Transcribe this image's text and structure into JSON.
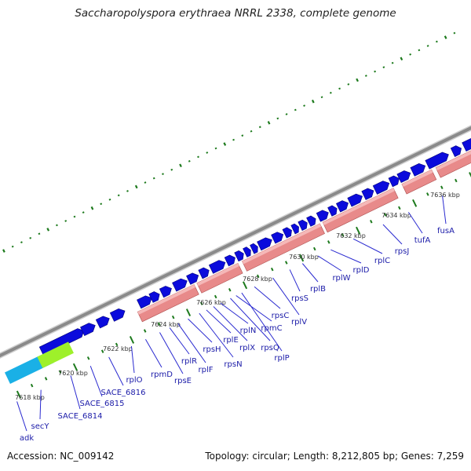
{
  "title": "Saccharopolyspora erythraea NRRL 2338, complete genome",
  "footer": {
    "accession": "Accession: NC_009142",
    "summary": "Topology: circular; Length: 8,212,805 bp; Genes: 7,259"
  },
  "colors": {
    "backbone": "#8a8a8a",
    "cds_forward": "#0b0bdc",
    "cds_reverse": "#0b0bdc",
    "rna_track": "#e88a8a",
    "tick": "#1d7a1d",
    "gene_label": "#1a1aa8",
    "highlight_green": "#9ef02a",
    "highlight_cyan": "#1ab0e6"
  },
  "scale": {
    "unit": "kbp",
    "positions": [
      "7618 kbp",
      "7620 kbp",
      "7622 kbp",
      "7624 kbp",
      "7626 kbp",
      "7628 kbp",
      "7630 kbp",
      "7632 kbp",
      "7634 kbp",
      "7636 kbp"
    ]
  },
  "genes": [
    "adk",
    "secY",
    "SACE_6814",
    "SACE_6815",
    "SACE_6816",
    "rplO",
    "rpmD",
    "rpsE",
    "rplR",
    "rplF",
    "rpsH",
    "rpsN",
    "rplE",
    "rplX",
    "rplN",
    "rpsQ",
    "rpmC",
    "rplP",
    "rpsC",
    "rplV",
    "rpsS",
    "rplB",
    "rplW",
    "rplD",
    "rplC",
    "rpsJ",
    "tufA",
    "fusA"
  ]
}
